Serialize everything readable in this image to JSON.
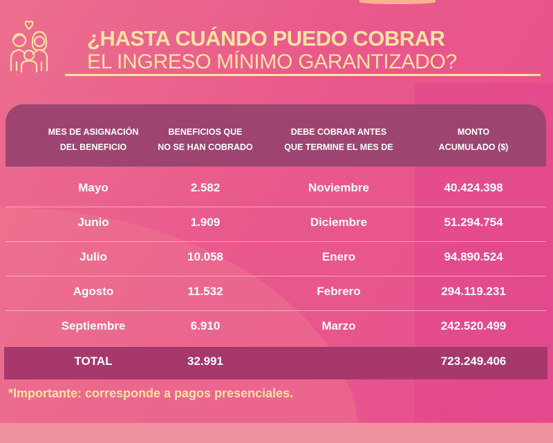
{
  "title": {
    "line1": "¿HASTA CUÁNDO PUEDO COBRAR",
    "line2": "EL INGRESO MÍNIMO GARANTIZADO?"
  },
  "table": {
    "headers": [
      [
        "MES DE ASIGNACIÓN",
        "DEL BENEFICIO"
      ],
      [
        "BENEFICIOS QUE",
        "NO SE HAN COBRADO"
      ],
      [
        "DEBE COBRAR ANTES",
        "QUE TERMINE EL MES DE"
      ],
      [
        "MONTO",
        "ACUMULADO ($)"
      ]
    ],
    "rows": [
      [
        "Mayo",
        "2.582",
        "Noviembre",
        "40.424.398"
      ],
      [
        "Junio",
        "1.909",
        "Diciembre",
        "51.294.754"
      ],
      [
        "Julio",
        "10.058",
        "Enero",
        "94.890.524"
      ],
      [
        "Agosto",
        "11.532",
        "Febrero",
        "294.119.231"
      ],
      [
        "Septiembre",
        "6.910",
        "Marzo",
        "242.520.499"
      ]
    ],
    "total": {
      "label": "TOTAL",
      "beneficios": "32.991",
      "monto": "723.249.406"
    }
  },
  "note": "*Importante: corresponde a pagos presenciales.",
  "colors": {
    "background": "#e9598c",
    "header": "#9d4570",
    "total": "#a6386b",
    "accent_text": "#fde3a2"
  },
  "icons": {
    "family": "family-heart-icon"
  }
}
